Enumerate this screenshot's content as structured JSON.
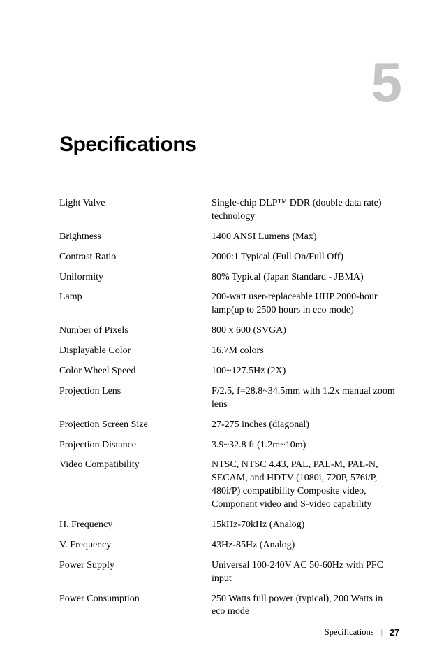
{
  "chapter_number": "5",
  "title": "Specifications",
  "specs": [
    {
      "label": "Light Valve",
      "value": "Single-chip DLP™ DDR (double data rate) technology"
    },
    {
      "label": "Brightness",
      "value": "1400 ANSI Lumens (Max)"
    },
    {
      "label": "Contrast Ratio",
      "value": "2000:1 Typical (Full On/Full Off)"
    },
    {
      "label": "Uniformity",
      "value": "80% Typical (Japan Standard - JBMA)"
    },
    {
      "label": "Lamp",
      "value": "200-watt user-replaceable UHP 2000-hour lamp(up to 2500 hours in eco mode)"
    },
    {
      "label": "Number of Pixels",
      "value": "800 x 600  (SVGA)"
    },
    {
      "label": "Displayable Color",
      "value": "16.7M colors"
    },
    {
      "label": "Color Wheel Speed",
      "value": "100~127.5Hz  (2X)"
    },
    {
      "label": "Projection Lens",
      "value": "F/2.5, f=28.8~34.5mm with 1.2x manual zoom lens"
    },
    {
      "label": "Projection Screen Size",
      "value": "27-275 inches (diagonal)"
    },
    {
      "label": "Projection Distance",
      "value": "3.9~32.8 ft (1.2m~10m)"
    },
    {
      "label": "Video Compatibility",
      "value": "NTSC, NTSC 4.43, PAL, PAL-M, PAL-N, SECAM, and HDTV (1080i, 720P, 576i/P, 480i/P) compatibility Composite video, Component video and S-video capability"
    },
    {
      "label": "H. Frequency",
      "value": "15kHz-70kHz (Analog)"
    },
    {
      "label": "V. Frequency",
      "value": "43Hz-85Hz (Analog)"
    },
    {
      "label": "Power Supply",
      "value": "Universal 100-240V AC 50-60Hz with PFC input"
    },
    {
      "label": "Power Consumption",
      "value": "250 Watts full power (typical), 200 Watts in eco mode"
    }
  ],
  "footer": {
    "section": "Specifications",
    "page": "27"
  }
}
